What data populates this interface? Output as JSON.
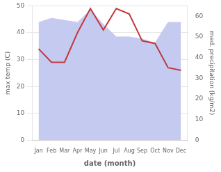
{
  "chart_data": {
    "type": "line",
    "xlabel": "date (month)",
    "ylabel": "max temp (C)",
    "y2label": "med. precipitation (kg/m2)",
    "categories": [
      "Jan",
      "Feb",
      "Mar",
      "Apr",
      "May",
      "Jun",
      "Jul",
      "Aug",
      "Sep",
      "Oct",
      "Nov",
      "Dec"
    ],
    "series": [
      {
        "type": "line",
        "color": "#c0393b",
        "values": [
          34,
          29,
          29,
          40,
          49,
          41,
          49,
          47,
          37,
          36,
          27,
          26
        ]
      },
      {
        "type": "area",
        "color": "#c5caf0",
        "axis": "y2",
        "values": [
          57,
          59,
          58,
          57,
          63,
          56,
          50,
          50,
          49,
          47,
          57,
          57
        ]
      }
    ],
    "ylim": [
      0,
      50
    ],
    "yticks": [
      0,
      10,
      20,
      30,
      40,
      50
    ],
    "y2lim": [
      0,
      65
    ],
    "y2ticks": [
      0,
      10,
      20,
      30,
      40,
      50,
      60
    ],
    "grid": true
  }
}
